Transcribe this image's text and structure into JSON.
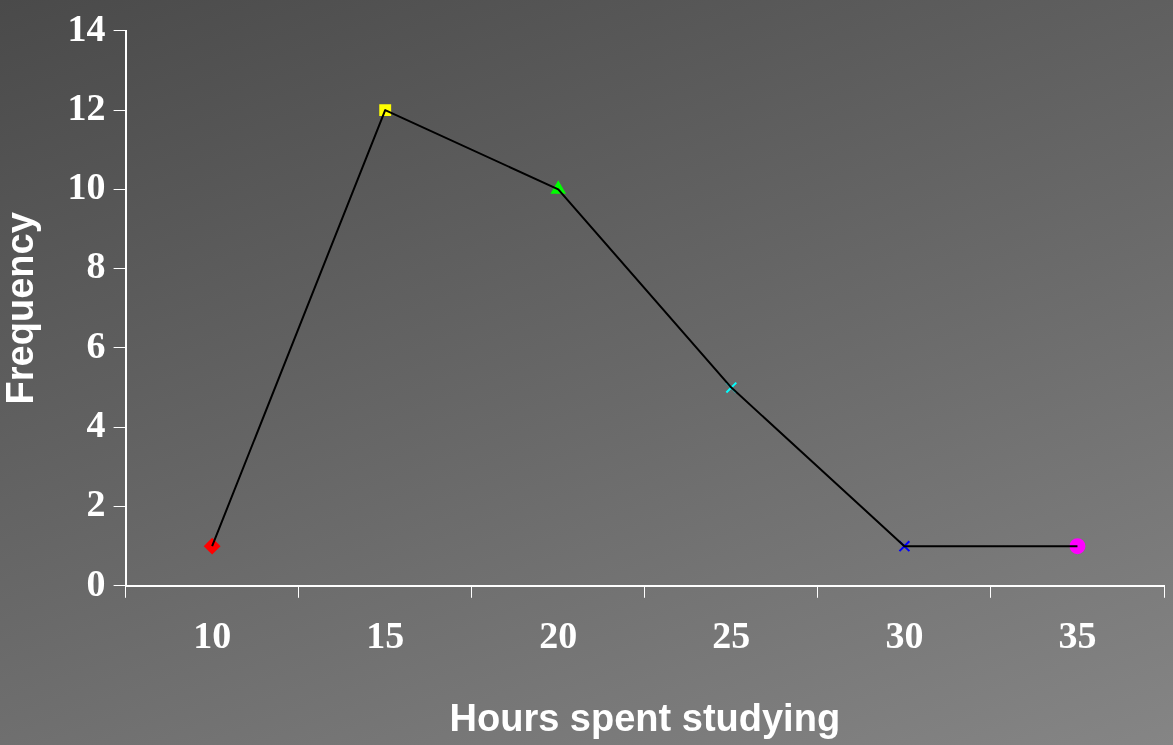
{
  "chart_data": {
    "type": "line",
    "xlabel": "Hours spent studying",
    "ylabel": "Frequency",
    "categories": [
      "10",
      "15",
      "20",
      "25",
      "30",
      "35"
    ],
    "series": [
      {
        "type": "line",
        "color": "#000000",
        "marker": "none",
        "values": [
          1,
          12,
          10,
          5,
          1,
          1
        ]
      },
      {
        "type": "scatter",
        "color": "#ff0000",
        "marker": "diamond",
        "x": [
          "10"
        ],
        "values": [
          1
        ]
      },
      {
        "type": "scatter",
        "color": "#ffff00",
        "marker": "square",
        "x": [
          "15"
        ],
        "values": [
          12
        ]
      },
      {
        "type": "scatter",
        "color": "#00ff00",
        "marker": "triangle",
        "x": [
          "20"
        ],
        "values": [
          10
        ]
      },
      {
        "type": "scatter",
        "color": "#00ffff",
        "marker": "cross",
        "x": [
          "25"
        ],
        "values": [
          5
        ]
      },
      {
        "type": "scatter",
        "color": "#0000ff",
        "marker": "cross",
        "x": [
          "30"
        ],
        "values": [
          1
        ]
      },
      {
        "type": "scatter",
        "color": "#ff00ff",
        "marker": "circle",
        "x": [
          "35"
        ],
        "values": [
          1
        ]
      }
    ],
    "ylim": [
      0,
      14
    ],
    "yticks": [
      0,
      2,
      4,
      6,
      8,
      10,
      12,
      14
    ],
    "grid": false,
    "legend": false
  }
}
